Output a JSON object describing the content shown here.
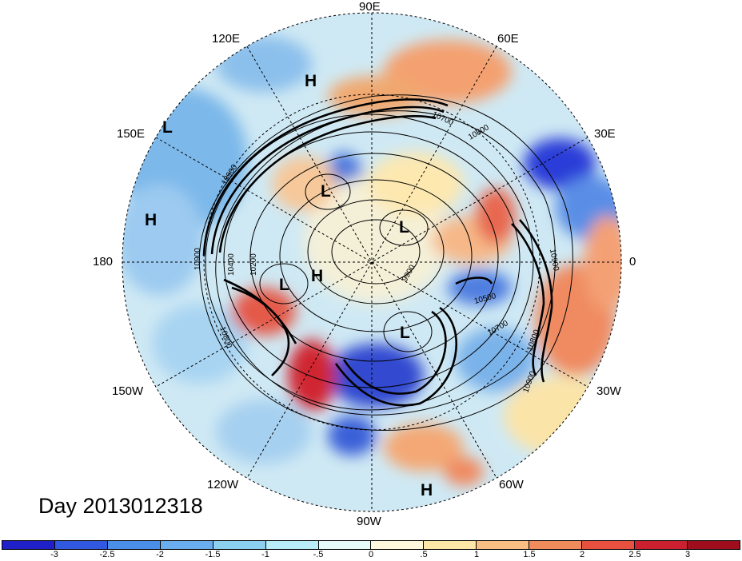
{
  "title": "Day 2013012318",
  "longitude_labels": {
    "north": "90E",
    "upper_left": "120E",
    "upper_right": "60E",
    "left_upper": "150E",
    "right_upper": "30E",
    "left": "180",
    "right": "0",
    "left_lower": "150W",
    "right_lower": "30W",
    "lower_left": "120W",
    "lower_right": "60W",
    "south": "90W"
  },
  "pressure_centers": [
    "H",
    "L",
    "L",
    "H",
    "L",
    "L",
    "H",
    "L",
    "H"
  ],
  "contour_labels": {
    "c10900_left": "10900",
    "c10400": "10400",
    "c10200": "10200",
    "c10800_left": "10800",
    "c10900_top": "10900",
    "c10700_top": "10700",
    "c10800_top": "10800",
    "c9900": "9900",
    "c10500": "10500",
    "c10700_right": "10700",
    "c10800_right": "10800",
    "c10900_right": "10900",
    "c10900_far": "10900"
  },
  "colorbar": {
    "colors": [
      "#2020c8",
      "#3058e0",
      "#4a8ee8",
      "#6aaef0",
      "#8cd0f0",
      "#b8ecf8",
      "#e6fafa",
      "#fff8dc",
      "#fce6a8",
      "#f8be84",
      "#f08c5c",
      "#e85040",
      "#cc2030",
      "#a00e1e"
    ],
    "tick_labels": [
      "-3",
      "-2.5",
      "-2",
      "-1.5",
      "-1",
      "-.5",
      "0",
      ".5",
      "1",
      "1.5",
      "2",
      "2.5",
      "3"
    ]
  }
}
